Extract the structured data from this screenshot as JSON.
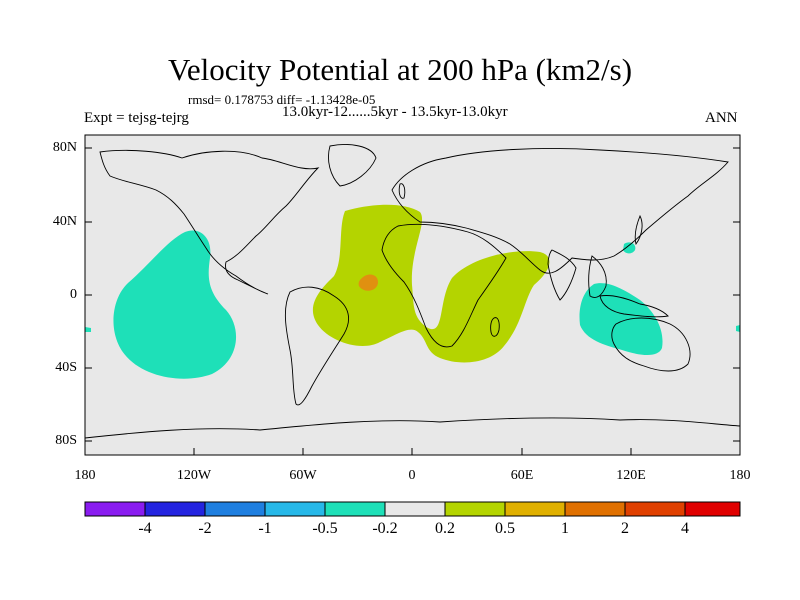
{
  "title": "Velocity Potential at 200 hPa (km2/s)",
  "stats": "rmsd= 0.178753  diff= -1.13428e-05",
  "experiment": "Expt = tejsg-tejrg",
  "period": "13.0kyr-12......5kyr - 13.5kyr-13.0kyr",
  "season": "ANN",
  "y_axis": {
    "ticks": [
      "80N",
      "40N",
      "0",
      "40S",
      "80S"
    ]
  },
  "x_axis": {
    "ticks": [
      "180",
      "120W",
      "60W",
      "0",
      "60E",
      "120E",
      "180"
    ]
  },
  "map_bounds": {
    "lon": [
      -180,
      180
    ],
    "lat": [
      -90,
      90
    ]
  },
  "colorbar": {
    "colors": [
      "#8a1cf0",
      "#2424e0",
      "#1f7fe0",
      "#27b8e8",
      "#1ee0b8",
      "#e8e8e8",
      "#b4d400",
      "#e0b000",
      "#e07000",
      "#e04000",
      "#e00000"
    ],
    "labels": [
      "-4",
      "-2",
      "-1",
      "-0.5",
      "-0.2",
      "0.2",
      "0.5",
      "1",
      "2",
      "4"
    ]
  },
  "regions": [
    {
      "name": "central-pacific-negative",
      "level": "-0.5 to -0.2",
      "color": "#1ee0b8"
    },
    {
      "name": "atlantic-africa-positive",
      "level": "0.2 to 0.5",
      "color": "#b4d400"
    },
    {
      "name": "tropical-atlantic-peak",
      "level": "1 to 2",
      "color": "#e09010"
    },
    {
      "name": "maritime-continent-negative",
      "level": "-0.5 to -0.2",
      "color": "#1ee0b8"
    }
  ],
  "background_color": "#e8e8e8"
}
